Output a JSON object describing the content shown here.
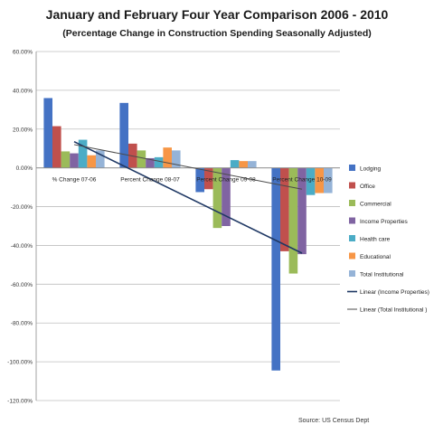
{
  "chart_data": {
    "type": "bar",
    "title": "January and February Four Year Comparison 2006 - 2010",
    "subtitle": "(Percentage Change in Construction Spending Seasonally Adjusted)",
    "xlabel": "",
    "ylabel": "",
    "ylim": [
      -120,
      60
    ],
    "y_ticks": [
      60,
      40,
      20,
      0,
      -20,
      -40,
      -60,
      -80,
      -100,
      -120
    ],
    "y_tick_labels": [
      "60.00%",
      "40.00%",
      "20.00%",
      "0.00%",
      "-20.00%",
      "-40.00%",
      "-60.00%",
      "-80.00%",
      "-100.00%",
      "-120.00%"
    ],
    "categories": [
      "% Change 07-06",
      "Percent Change 08-07",
      "Percent Change 09-08",
      "Percent Change 10-09"
    ],
    "grid": true,
    "legend_position": "right",
    "series": [
      {
        "name": "Lodging",
        "color": "#4472C4",
        "values": [
          36,
          33.5,
          -12.5,
          -104.5
        ]
      },
      {
        "name": "Office",
        "color": "#C0504D",
        "values": [
          21.5,
          12.5,
          -11,
          -43
        ]
      },
      {
        "name": "Commercial",
        "color": "#9BBB59",
        "values": [
          8.5,
          9,
          -31,
          -54.5
        ]
      },
      {
        "name": "Income Properties",
        "color": "#8064A2",
        "values": [
          7.5,
          5,
          -30,
          -44.5
        ]
      },
      {
        "name": "Health care",
        "color": "#4BACC6",
        "values": [
          14.5,
          5.5,
          4,
          -14
        ]
      },
      {
        "name": "Educational",
        "color": "#F79646",
        "values": [
          6.5,
          10.5,
          3.5,
          -13
        ]
      },
      {
        "name": "Total Institutional",
        "color": "#95B3D7",
        "values": [
          9,
          9,
          3.5,
          -13
        ]
      }
    ],
    "trendlines": [
      {
        "name": "Linear (Income Properties)",
        "color": "#1F3864",
        "start": [
          1,
          13.5
        ],
        "end": [
          4,
          -44
        ]
      },
      {
        "name": "Linear (Total Institutional )",
        "color": "#4A4A4A",
        "start": [
          1,
          12
        ],
        "end": [
          4,
          -11
        ]
      }
    ]
  },
  "source": "Source: US Census Dept"
}
